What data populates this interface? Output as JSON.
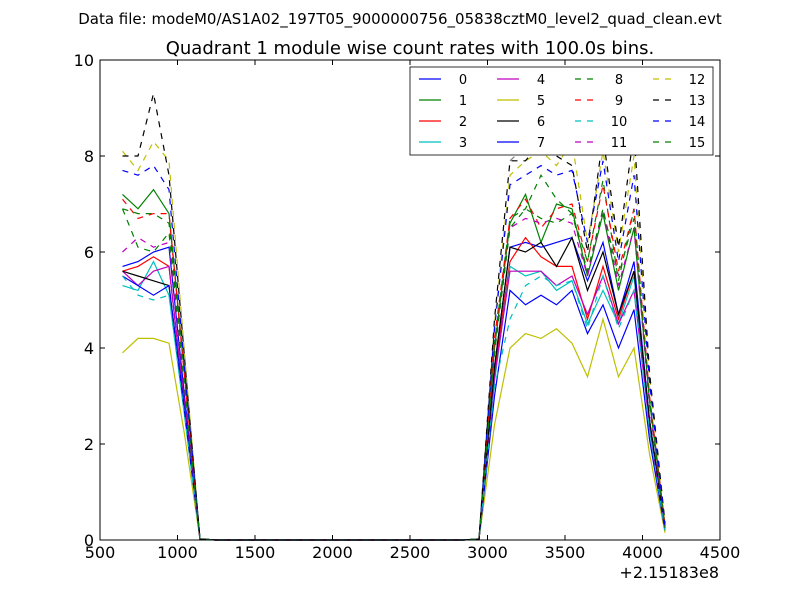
{
  "chart_data": {
    "type": "line",
    "suptitle": "Data file: modeM0/AS1A02_197T05_9000000756_05838cztM0_level2_quad_clean.evt",
    "title": "Quadrant 1 module wise count rates with 100.0s bins.",
    "xlabel": "",
    "ylabel": "",
    "x_offset_label": "+2.15183e8",
    "xlim": [
      500,
      4500
    ],
    "ylim": [
      0,
      10
    ],
    "xticks": [
      500,
      1000,
      1500,
      2000,
      2500,
      3000,
      3500,
      4000,
      4500
    ],
    "yticks": [
      0,
      2,
      4,
      6,
      8,
      10
    ],
    "legend_position": "top-right",
    "legend_columns": 4,
    "x": [
      645,
      745,
      845,
      945,
      1045,
      1145,
      1245,
      1345,
      1445,
      1545,
      1645,
      1745,
      1845,
      1945,
      2045,
      2145,
      2245,
      2345,
      2445,
      2545,
      2645,
      2745,
      2845,
      2945,
      3045,
      3145,
      3245,
      3345,
      3445,
      3545,
      3645,
      3745,
      3845,
      3945,
      4045,
      4145
    ],
    "series": [
      {
        "name": "0",
        "color": "#0000ff",
        "dash": false,
        "values": [
          5.7,
          5.8,
          6.0,
          6.1,
          3.0,
          0.02,
          0,
          0,
          0,
          0,
          0,
          0,
          0,
          0,
          0,
          0,
          0,
          0,
          0,
          0,
          0,
          0,
          0,
          0.02,
          3.6,
          6.1,
          6.2,
          6.1,
          6.2,
          6.3,
          5.4,
          6.2,
          4.7,
          5.8,
          2.5,
          0.25
        ]
      },
      {
        "name": "1",
        "color": "#008000",
        "dash": false,
        "values": [
          7.2,
          6.9,
          7.3,
          6.8,
          3.5,
          0.02,
          0,
          0,
          0,
          0,
          0,
          0,
          0,
          0,
          0,
          0,
          0,
          0,
          0,
          0,
          0,
          0,
          0,
          0.02,
          4.0,
          6.6,
          7.2,
          6.2,
          7.0,
          6.9,
          5.5,
          6.8,
          5.2,
          6.5,
          2.9,
          0.3
        ]
      },
      {
        "name": "2",
        "color": "#ff0000",
        "dash": false,
        "values": [
          5.6,
          5.7,
          5.9,
          5.7,
          2.8,
          0.02,
          0,
          0,
          0,
          0,
          0,
          0,
          0,
          0,
          0,
          0,
          0,
          0,
          0,
          0,
          0,
          0,
          0,
          0.02,
          3.5,
          5.8,
          6.3,
          5.9,
          5.7,
          5.7,
          4.6,
          5.7,
          4.6,
          5.6,
          2.4,
          0.25
        ]
      },
      {
        "name": "3",
        "color": "#00bfbf",
        "dash": false,
        "values": [
          5.3,
          5.2,
          5.8,
          5.1,
          2.6,
          0.02,
          0,
          0,
          0,
          0,
          0,
          0,
          0,
          0,
          0,
          0,
          0,
          0,
          0,
          0,
          0,
          0,
          0,
          0.02,
          3.3,
          5.7,
          5.5,
          5.6,
          5.2,
          5.4,
          4.5,
          5.2,
          4.5,
          5.5,
          2.3,
          0.2
        ]
      },
      {
        "name": "4",
        "color": "#bf00bf",
        "dash": false,
        "values": [
          5.6,
          5.3,
          5.6,
          5.7,
          2.8,
          0.02,
          0,
          0,
          0,
          0,
          0,
          0,
          0,
          0,
          0,
          0,
          0,
          0,
          0,
          0,
          0,
          0,
          0,
          0.02,
          3.4,
          5.6,
          5.6,
          5.6,
          5.3,
          5.5,
          4.7,
          5.5,
          4.5,
          5.2,
          2.4,
          0.2
        ]
      },
      {
        "name": "5",
        "color": "#bfbf00",
        "dash": false,
        "values": [
          3.9,
          4.2,
          4.2,
          4.1,
          2.2,
          0.02,
          0,
          0,
          0,
          0,
          0,
          0,
          0,
          0,
          0,
          0,
          0,
          0,
          0,
          0,
          0,
          0,
          0,
          0.02,
          2.4,
          4.0,
          4.3,
          4.2,
          4.4,
          4.1,
          3.4,
          4.6,
          3.4,
          4.0,
          1.8,
          0.15
        ]
      },
      {
        "name": "6",
        "color": "#000000",
        "dash": false,
        "values": [
          5.6,
          5.5,
          5.4,
          5.3,
          2.7,
          0.02,
          0,
          0,
          0,
          0,
          0,
          0,
          0,
          0,
          0,
          0,
          0,
          0,
          0,
          0,
          0,
          0,
          0,
          0.02,
          3.6,
          6.1,
          6.0,
          6.2,
          5.7,
          6.3,
          5.2,
          6.0,
          4.7,
          5.6,
          2.5,
          0.25
        ]
      },
      {
        "name": "7",
        "color": "#0000ff",
        "dash": false,
        "values": [
          5.5,
          5.3,
          5.1,
          5.3,
          2.7,
          0.02,
          0,
          0,
          0,
          0,
          0,
          0,
          0,
          0,
          0,
          0,
          0,
          0,
          0,
          0,
          0,
          0,
          0,
          0.02,
          3.0,
          5.2,
          4.9,
          5.1,
          4.9,
          5.2,
          4.3,
          4.9,
          4.0,
          4.8,
          2.1,
          0.2
        ]
      },
      {
        "name": "8",
        "color": "#008000",
        "dash": true,
        "values": [
          6.9,
          6.8,
          6.8,
          6.6,
          3.4,
          0.02,
          0,
          0,
          0,
          0,
          0,
          0,
          0,
          0,
          0,
          0,
          0,
          0,
          0,
          0,
          0,
          0,
          0,
          0.02,
          4.1,
          6.7,
          6.9,
          7.6,
          7.1,
          6.8,
          5.8,
          7.5,
          5.4,
          6.9,
          3.0,
          0.3
        ]
      },
      {
        "name": "9",
        "color": "#ff0000",
        "dash": true,
        "values": [
          7.1,
          6.7,
          6.8,
          6.8,
          3.4,
          0.02,
          0,
          0,
          0,
          0,
          0,
          0,
          0,
          0,
          0,
          0,
          0,
          0,
          0,
          0,
          0,
          0,
          0,
          0.02,
          4.2,
          6.7,
          7.1,
          6.5,
          6.9,
          7.0,
          5.8,
          7.4,
          5.6,
          6.9,
          3.0,
          0.3
        ]
      },
      {
        "name": "10",
        "color": "#00bfbf",
        "dash": true,
        "values": [
          5.5,
          5.1,
          5.0,
          5.1,
          2.6,
          0.02,
          0,
          0,
          0,
          0,
          0,
          0,
          0,
          0,
          0,
          0,
          0,
          0,
          0,
          0,
          0,
          0,
          0,
          0.02,
          3.2,
          4.6,
          5.3,
          5.5,
          5.3,
          5.4,
          4.4,
          5.5,
          4.4,
          5.2,
          2.3,
          0.2
        ]
      },
      {
        "name": "11",
        "color": "#bf00bf",
        "dash": true,
        "values": [
          6.0,
          6.3,
          6.1,
          6.2,
          3.1,
          0.02,
          0,
          0,
          0,
          0,
          0,
          0,
          0,
          0,
          0,
          0,
          0,
          0,
          0,
          0,
          0,
          0,
          0,
          0.02,
          3.9,
          6.5,
          6.7,
          6.6,
          6.7,
          6.6,
          5.5,
          6.9,
          5.3,
          6.5,
          2.8,
          0.25
        ]
      },
      {
        "name": "12",
        "color": "#bfbf00",
        "dash": true,
        "values": [
          8.1,
          7.7,
          8.3,
          7.9,
          3.9,
          0.02,
          0,
          0,
          0,
          0,
          0,
          0,
          0,
          0,
          0,
          0,
          0,
          0,
          0,
          0,
          0,
          0,
          0,
          0.02,
          4.5,
          7.6,
          7.9,
          8.1,
          7.8,
          8.3,
          6.2,
          8.1,
          6.0,
          8.0,
          3.4,
          0.35
        ]
      },
      {
        "name": "13",
        "color": "#000000",
        "dash": true,
        "values": [
          8.0,
          8.0,
          9.3,
          7.6,
          3.8,
          0.02,
          0,
          0,
          0,
          0,
          0,
          0,
          0,
          0,
          0,
          0,
          0,
          0,
          0,
          0,
          0,
          0,
          0,
          0.02,
          4.6,
          7.9,
          7.9,
          8.3,
          8.0,
          7.8,
          6.0,
          8.4,
          6.1,
          8.5,
          3.5,
          0.35
        ]
      },
      {
        "name": "14",
        "color": "#0000ff",
        "dash": true,
        "values": [
          7.7,
          7.6,
          7.8,
          7.3,
          3.6,
          0.02,
          0,
          0,
          0,
          0,
          0,
          0,
          0,
          0,
          0,
          0,
          0,
          0,
          0,
          0,
          0,
          0,
          0,
          0.02,
          4.4,
          7.4,
          7.6,
          7.8,
          7.6,
          7.7,
          6.2,
          7.9,
          5.8,
          7.6,
          3.3,
          0.3
        ]
      },
      {
        "name": "15",
        "color": "#008000",
        "dash": true,
        "values": [
          6.9,
          6.1,
          6.0,
          6.4,
          3.2,
          0.02,
          0,
          0,
          0,
          0,
          0,
          0,
          0,
          0,
          0,
          0,
          0,
          0,
          0,
          0,
          0,
          0,
          0,
          0.02,
          3.9,
          6.5,
          6.9,
          6.7,
          6.6,
          6.8,
          5.6,
          6.9,
          5.5,
          6.7,
          2.9,
          0.25
        ]
      }
    ],
    "extra_traces": [
      {
        "name": "grey-dashed",
        "color": "#808080",
        "dash": true,
        "x": [
          3145,
          3245,
          3345,
          3445
        ],
        "values": [
          7.9,
          8.2,
          8.7,
          8.6
        ]
      }
    ]
  }
}
